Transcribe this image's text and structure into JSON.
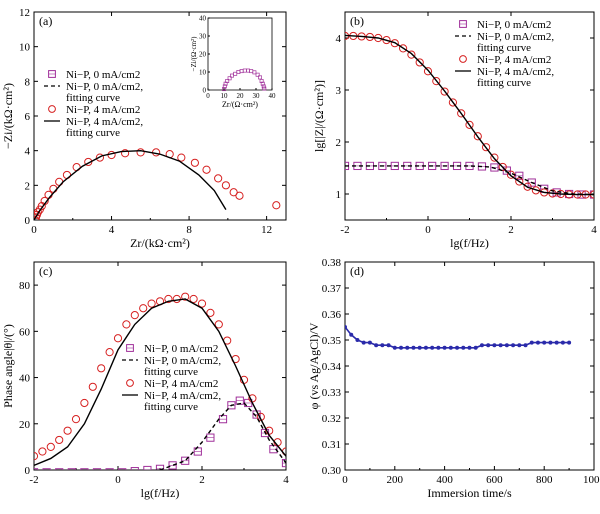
{
  "chart_data": [
    {
      "panel": "(a)",
      "type": "scatter",
      "xlabel": "Zr/(kΩ·cm²)",
      "ylabel": "−Zi/(kΩ·cm²)",
      "xlim": [
        0,
        13
      ],
      "ylim": [
        0,
        12
      ],
      "xticks": [
        "0",
        "4",
        "8",
        "12"
      ],
      "yticks": [
        "0",
        "2",
        "4",
        "6",
        "8",
        "10",
        "12"
      ],
      "legend": [
        "Ni−P, 0 mA/cm2",
        "Ni−P, 0 mA/cm2, fitting curve",
        "Ni−P, 4 mA/cm2",
        "Ni−P, 4 mA/cm2, fitting curve"
      ],
      "series": [
        {
          "name": "Ni−P, 4 mA/cm2",
          "marker": "circle",
          "color": "#d62020",
          "x": [
            0.05,
            0.1,
            0.15,
            0.2,
            0.3,
            0.4,
            0.55,
            0.75,
            1.0,
            1.3,
            1.7,
            2.2,
            2.8,
            3.4,
            4.0,
            4.7,
            5.5,
            6.3,
            7.0,
            7.6,
            8.3,
            8.9,
            9.5,
            9.9,
            10.3,
            10.6,
            12.5
          ],
          "y": [
            0.0,
            0.15,
            0.3,
            0.45,
            0.6,
            0.8,
            1.1,
            1.45,
            1.8,
            2.2,
            2.6,
            3.05,
            3.35,
            3.6,
            3.75,
            3.85,
            3.9,
            3.9,
            3.8,
            3.6,
            3.3,
            2.9,
            2.4,
            2.0,
            1.6,
            1.4,
            0.85
          ]
        },
        {
          "name": "Ni−P, 4 mA/cm2, fitting curve",
          "style": "solid",
          "x": [
            0.0,
            0.3,
            0.8,
            1.5,
            2.5,
            3.5,
            4.5,
            5.5,
            6.5,
            7.5,
            8.5,
            9.3,
            9.9
          ],
          "y": [
            0.0,
            0.55,
            1.3,
            2.2,
            3.1,
            3.7,
            3.95,
            4.0,
            3.8,
            3.4,
            2.6,
            1.7,
            0.6
          ]
        }
      ],
      "inset": {
        "xlabel": "Zr/(Ω·cm²)",
        "ylabel": "−Zi/(Ω·cm²)",
        "xlim": [
          0,
          40
        ],
        "ylim": [
          0,
          40
        ],
        "xticks": [
          "0",
          "10",
          "20",
          "30",
          "40"
        ],
        "yticks": [
          "0",
          "10",
          "20",
          "30",
          "40"
        ],
        "series": [
          {
            "name": "Ni−P, 0 mA/cm2",
            "marker": "square",
            "color": "#a0309a",
            "x": [
              10,
              10.5,
              11,
              12,
              13.5,
              15,
              17,
              19,
              21,
              23,
              25,
              27,
              29,
              31,
              32.5,
              33.5,
              34.2,
              34.8,
              35.2
            ],
            "y": [
              0.5,
              2,
              3.5,
              5,
              6.5,
              8,
              9,
              10,
              10.5,
              10.8,
              10.8,
              10.5,
              9.8,
              8.5,
              7,
              5,
              3.5,
              2,
              0.8
            ]
          }
        ]
      }
    },
    {
      "panel": "(b)",
      "type": "line",
      "xlabel": "lg(f/Hz)",
      "ylabel": "lg[|Z|/(Ω·cm²)]",
      "xlim": [
        -2,
        4
      ],
      "ylim": [
        0.5,
        4.5
      ],
      "xticks": [
        "-2",
        "0",
        "2",
        "4"
      ],
      "yticks": [
        "1",
        "2",
        "3",
        "4"
      ],
      "legend": [
        "Ni−P, 0 mA/cm2",
        "Ni−P, 0 mA/cm2, fitting curve",
        "Ni−P, 4 mA/cm2",
        "Ni−P, 4 mA/cm2, fitting curve"
      ],
      "series": [
        {
          "name": "Ni−P, 0 mA/cm2",
          "marker": "square",
          "color": "#a0309a",
          "x": [
            -2,
            -1.7,
            -1.4,
            -1.1,
            -0.8,
            -0.5,
            -0.2,
            0.1,
            0.4,
            0.7,
            1.0,
            1.3,
            1.6,
            1.9,
            2.2,
            2.5,
            2.8,
            3.1,
            3.4,
            3.7,
            4.0
          ],
          "y": [
            1.54,
            1.54,
            1.54,
            1.54,
            1.54,
            1.54,
            1.54,
            1.54,
            1.54,
            1.54,
            1.54,
            1.53,
            1.51,
            1.45,
            1.35,
            1.22,
            1.1,
            1.03,
            1.0,
            0.99,
            0.99
          ]
        },
        {
          "name": "Ni−P, 4 mA/cm2",
          "marker": "circle",
          "color": "#d62020",
          "x": [
            -2,
            -1.8,
            -1.6,
            -1.4,
            -1.2,
            -1.0,
            -0.8,
            -0.6,
            -0.4,
            -0.2,
            0.0,
            0.2,
            0.4,
            0.6,
            0.8,
            1.0,
            1.2,
            1.4,
            1.6,
            1.8,
            2.0,
            2.2,
            2.4,
            2.6,
            2.8,
            3.0,
            3.2,
            3.4,
            3.6,
            3.8,
            4.0
          ],
          "y": [
            4.04,
            4.04,
            4.03,
            4.02,
            4.0,
            3.96,
            3.9,
            3.8,
            3.68,
            3.53,
            3.36,
            3.17,
            2.97,
            2.76,
            2.55,
            2.33,
            2.11,
            1.9,
            1.7,
            1.52,
            1.37,
            1.24,
            1.14,
            1.07,
            1.03,
            1.01,
            1.0,
            0.99,
            0.99,
            0.99,
            0.99
          ]
        },
        {
          "name": "Ni−P, 4 mA/cm2, fitting curve",
          "style": "solid",
          "x": [
            -2,
            -1.6,
            -1.2,
            -0.8,
            -0.4,
            0.0,
            0.4,
            0.8,
            1.2,
            1.6,
            2.0,
            2.4,
            2.8,
            3.2,
            3.6,
            4.0
          ],
          "y": [
            4.05,
            4.03,
            4.0,
            3.91,
            3.7,
            3.38,
            2.98,
            2.55,
            2.1,
            1.68,
            1.35,
            1.13,
            1.03,
            1.0,
            0.99,
            0.99
          ]
        },
        {
          "name": "Ni−P, 0 mA/cm2, fitting curve",
          "style": "dashed",
          "x": [
            -2,
            -1,
            0,
            1,
            1.5,
            2,
            2.5,
            3,
            3.5,
            4
          ],
          "y": [
            1.54,
            1.54,
            1.54,
            1.54,
            1.52,
            1.4,
            1.22,
            1.06,
            1.0,
            0.99
          ]
        }
      ]
    },
    {
      "panel": "(c)",
      "type": "line",
      "xlabel": "lg(f/Hz)",
      "ylabel": "Phase angle|θ|/(°)",
      "xlim": [
        -2,
        4
      ],
      "ylim": [
        0,
        90
      ],
      "xticks": [
        "-2",
        "0",
        "2",
        "4"
      ],
      "yticks": [
        "0",
        "20",
        "40",
        "60",
        "80"
      ],
      "legend": [
        "Ni−P, 0 mA/cm2",
        "Ni−P, 0 mA/cm2, fitting curve",
        "Ni−P, 4 mA/cm2",
        "Ni−P, 4 mA/cm2, fitting curve"
      ],
      "series": [
        {
          "name": "Ni−P, 0 mA/cm2",
          "marker": "square",
          "color": "#a0309a",
          "x": [
            -2,
            -1.7,
            -1.4,
            -1.1,
            -0.8,
            -0.5,
            -0.2,
            0.1,
            0.4,
            0.7,
            1.0,
            1.3,
            1.6,
            1.9,
            2.2,
            2.5,
            2.7,
            2.9,
            3.1,
            3.3,
            3.5,
            3.7,
            4.0
          ],
          "y": [
            -1,
            -1,
            -1,
            -1,
            -1,
            -1,
            -1,
            -1,
            -0.5,
            0,
            0.5,
            2,
            4,
            8,
            14,
            22,
            28,
            30,
            29,
            24,
            16,
            9,
            3
          ]
        },
        {
          "name": "Ni−P, 4 mA/cm2",
          "marker": "circle",
          "color": "#d62020",
          "x": [
            -2,
            -1.8,
            -1.6,
            -1.4,
            -1.2,
            -1.0,
            -0.8,
            -0.6,
            -0.4,
            -0.2,
            0.0,
            0.2,
            0.4,
            0.6,
            0.8,
            1.0,
            1.2,
            1.4,
            1.6,
            1.8,
            2.0,
            2.2,
            2.4,
            2.6,
            2.8,
            3.0,
            3.2,
            3.4,
            3.6,
            3.8,
            4.0
          ],
          "y": [
            6,
            8,
            10,
            13,
            17,
            22,
            29,
            36,
            44,
            51,
            57,
            63,
            67,
            70,
            72,
            73,
            74,
            74,
            75,
            74,
            72,
            68,
            63,
            56,
            48,
            39,
            31,
            23,
            17,
            12,
            8
          ]
        },
        {
          "name": "Ni−P, 4 mA/cm2, fitting curve",
          "style": "solid",
          "x": [
            -2,
            -1.6,
            -1.2,
            -0.8,
            -0.4,
            0.0,
            0.4,
            0.8,
            1.2,
            1.6,
            2.0,
            2.4,
            2.8,
            3.2,
            3.6,
            4.0
          ],
          "y": [
            2,
            5,
            10,
            20,
            35,
            52,
            63,
            70,
            73,
            74,
            70,
            60,
            45,
            29,
            15,
            6
          ]
        },
        {
          "name": "Ni−P, 0 mA/cm2, fitting curve",
          "style": "dashed",
          "x": [
            -2,
            -1,
            0,
            1,
            1.6,
            2.0,
            2.4,
            2.7,
            3.0,
            3.3,
            3.6,
            4.0
          ],
          "y": [
            -1,
            -1,
            -1,
            0,
            4,
            12,
            22,
            28,
            29,
            23,
            13,
            3
          ]
        }
      ]
    },
    {
      "panel": "(d)",
      "type": "line",
      "xlabel": "Immersion time/s",
      "ylabel": "φ (vs Ag/AgCl)/V",
      "xlim": [
        0,
        1000
      ],
      "ylim": [
        0.3,
        0.38
      ],
      "xticks": [
        "0",
        "200",
        "400",
        "600",
        "800",
        "1000"
      ],
      "yticks": [
        "0.30",
        "0.31",
        "0.32",
        "0.33",
        "0.34",
        "0.35",
        "0.36",
        "0.37",
        "0.38"
      ],
      "series": [
        {
          "marker": "circle",
          "color": "#2a2aaa",
          "x": [
            0,
            25,
            50,
            75,
            100,
            125,
            150,
            175,
            200,
            225,
            250,
            275,
            300,
            325,
            350,
            375,
            400,
            425,
            450,
            475,
            500,
            525,
            550,
            575,
            600,
            625,
            650,
            675,
            700,
            725,
            750,
            775,
            800,
            825,
            850,
            875,
            900
          ],
          "y": [
            0.355,
            0.352,
            0.35,
            0.349,
            0.349,
            0.348,
            0.348,
            0.348,
            0.347,
            0.347,
            0.347,
            0.347,
            0.347,
            0.347,
            0.347,
            0.347,
            0.347,
            0.347,
            0.347,
            0.347,
            0.347,
            0.347,
            0.348,
            0.348,
            0.348,
            0.348,
            0.348,
            0.348,
            0.348,
            0.348,
            0.349,
            0.349,
            0.349,
            0.349,
            0.349,
            0.349,
            0.349
          ]
        }
      ]
    }
  ]
}
